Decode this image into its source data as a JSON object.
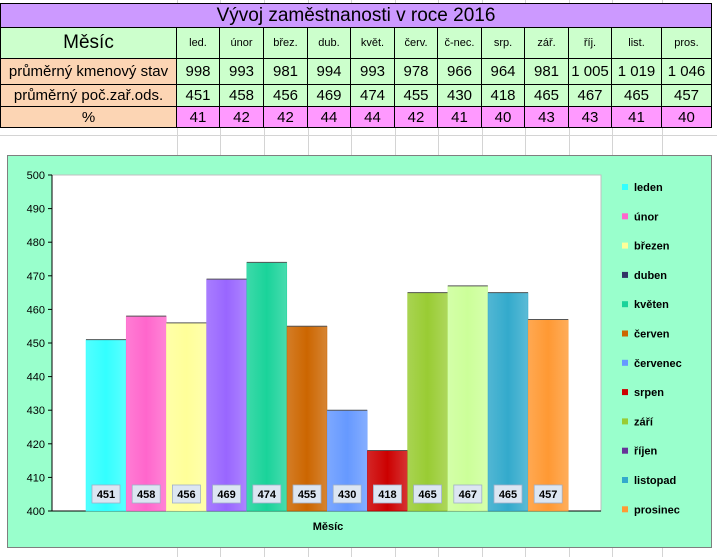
{
  "table": {
    "title": "Vývoj zaměstnanosti v roce 2016",
    "header_label": "Měsíc",
    "months": [
      "led.",
      "únor",
      "břez.",
      "dub.",
      "květ.",
      "červ.",
      "č-nec.",
      "srp.",
      "zář.",
      "říj.",
      "list.",
      "pros."
    ],
    "rows": [
      {
        "label": "průměrný kmenový stav",
        "values": [
          "998",
          "993",
          "981",
          "994",
          "993",
          "978",
          "966",
          "964",
          "981",
          "1 005",
          "1 019",
          "1 046"
        ]
      },
      {
        "label": "průměrný poč.zař.ods.",
        "values": [
          "451",
          "458",
          "456",
          "469",
          "474",
          "455",
          "430",
          "418",
          "465",
          "467",
          "465",
          "457"
        ]
      },
      {
        "label": "%",
        "values": [
          "41",
          "42",
          "42",
          "44",
          "44",
          "42",
          "41",
          "40",
          "43",
          "43",
          "41",
          "40"
        ]
      }
    ]
  },
  "chart_data": {
    "type": "bar",
    "categories": [
      "leden",
      "únor",
      "březen",
      "duben",
      "květen",
      "červen",
      "červenec",
      "srpen",
      "září",
      "říjen",
      "listopad",
      "prosinec"
    ],
    "values": [
      451,
      458,
      456,
      469,
      474,
      455,
      430,
      418,
      465,
      467,
      465,
      457
    ],
    "data_labels": [
      "451",
      "458",
      "456",
      "469",
      "474",
      "455",
      "430",
      "418",
      "465",
      "467",
      "465",
      "457"
    ],
    "colors": [
      "#33ffff",
      "#ff66cc",
      "#ffff99",
      "#9966ff",
      "#1ad39a",
      "#cc6600",
      "#6699ff",
      "#cc0000",
      "#99cc33",
      "#ccff99",
      "#33aacc",
      "#ff9933"
    ],
    "legend_colors": [
      "#33ffff",
      "#ff66cc",
      "#ffff99",
      "#333366",
      "#1ad39a",
      "#cc6600",
      "#6699ff",
      "#cc0000",
      "#99cc33",
      "#663399",
      "#33aacc",
      "#ff9933"
    ],
    "title": "",
    "xlabel": "Měsíc",
    "ylabel": "",
    "ylim": [
      400,
      500
    ],
    "yticks": [
      400,
      410,
      420,
      430,
      440,
      450,
      460,
      470,
      480,
      490,
      500
    ],
    "grid": false,
    "legend_position": "right",
    "background": "#99ffcc",
    "plot_background": "#ffffff"
  }
}
